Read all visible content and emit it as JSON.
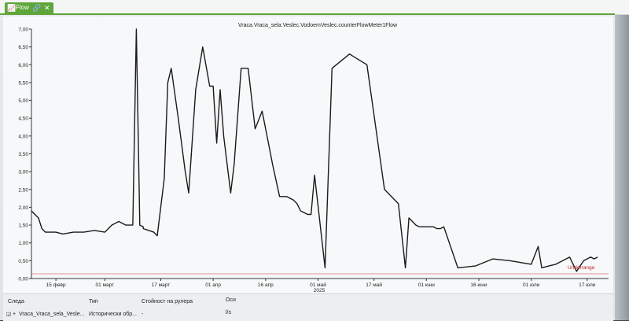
{
  "window": {
    "tab_label": "Flow",
    "tab_icon": "chart-icon",
    "chart_title": "Vraca.Vraca_sela.Veslec.VodoemVeslec.counterFlowMeter1Flow"
  },
  "chart_data": {
    "type": "line",
    "title": "Vraca.Vraca_sela.Veslec.VodoemVeslec.counterFlowMeter1Flow",
    "ylim": [
      0,
      7
    ],
    "y_ticks": [
      "0,00",
      "0,50",
      "1,00",
      "1,50",
      "2,00",
      "2,50",
      "3,00",
      "3,50",
      "4,00",
      "4,50",
      "5,00",
      "5,50",
      "6,00",
      "6,50",
      "7,00"
    ],
    "x_ticks": [
      "15 февр",
      "01 март",
      "17 март",
      "01 апр",
      "16 апр",
      "01 май",
      "17 май",
      "01 юни",
      "16 юни",
      "01 юли",
      "17 юли"
    ],
    "x_year": "2025",
    "annotation": "Underrange",
    "grid": false,
    "series": [
      {
        "color": "#1a1a1a",
        "x": [
          "02-08",
          "02-09",
          "02-10",
          "02-11",
          "02-12",
          "02-13",
          "02-14",
          "02-15",
          "02-17",
          "02-20",
          "02-23",
          "02-26",
          "03-01",
          "03-03",
          "03-05",
          "03-07",
          "03-09",
          "03-10",
          "03-11",
          "03-12",
          "03-12",
          "03-15",
          "03-16",
          "03-18",
          "03-19",
          "03-20",
          "03-22",
          "03-24",
          "03-25",
          "03-27",
          "03-29",
          "03-31",
          "04-01",
          "04-02",
          "04-03",
          "04-04",
          "04-05",
          "04-06",
          "04-07",
          "04-09",
          "04-11",
          "04-13",
          "04-15",
          "04-17",
          "04-18",
          "04-20",
          "04-22",
          "04-24",
          "04-25",
          "04-26",
          "04-28",
          "04-29",
          "04-30",
          "05-03",
          "05-05",
          "05-10",
          "05-15",
          "05-20",
          "05-24",
          "05-26",
          "05-27",
          "05-28",
          "05-29",
          "05-30",
          "05-31",
          "06-02",
          "06-03",
          "06-04",
          "06-05",
          "06-06",
          "06-10",
          "06-15",
          "06-20",
          "06-25",
          "07-01",
          "07-03",
          "07-04",
          "07-06",
          "07-08",
          "07-10",
          "07-12",
          "07-14",
          "07-16",
          "07-18",
          "07-19",
          "07-20"
        ],
        "y": [
          1.9,
          1.8,
          1.7,
          1.4,
          1.3,
          1.3,
          1.3,
          1.3,
          1.25,
          1.3,
          1.3,
          1.35,
          1.3,
          1.5,
          1.6,
          1.5,
          1.5,
          7.0,
          1.5,
          1.45,
          1.4,
          1.3,
          1.2,
          2.8,
          5.5,
          5.9,
          4.5,
          3.0,
          2.4,
          5.3,
          6.5,
          5.4,
          5.4,
          3.8,
          5.3,
          4.0,
          3.2,
          2.4,
          3.2,
          5.9,
          5.9,
          4.2,
          4.7,
          3.7,
          3.2,
          2.3,
          2.3,
          2.2,
          2.1,
          1.9,
          1.8,
          1.8,
          2.9,
          0.3,
          5.9,
          6.3,
          6.0,
          2.5,
          2.1,
          0.3,
          1.7,
          1.6,
          1.5,
          1.45,
          1.45,
          1.45,
          1.45,
          1.4,
          1.4,
          1.45,
          0.3,
          0.35,
          0.55,
          0.5,
          0.4,
          0.9,
          0.3,
          0.35,
          0.4,
          0.5,
          0.6,
          0.2,
          0.5,
          0.6,
          0.55,
          0.6
        ]
      }
    ]
  },
  "table": {
    "headers": [
      "Следа",
      "Тип",
      "Стойност на рулера",
      "Оси"
    ],
    "rows": [
      [
        "Vraca_Vraca_sela_Vesle...",
        "Исторически обр...",
        "-",
        "l/s"
      ]
    ]
  }
}
